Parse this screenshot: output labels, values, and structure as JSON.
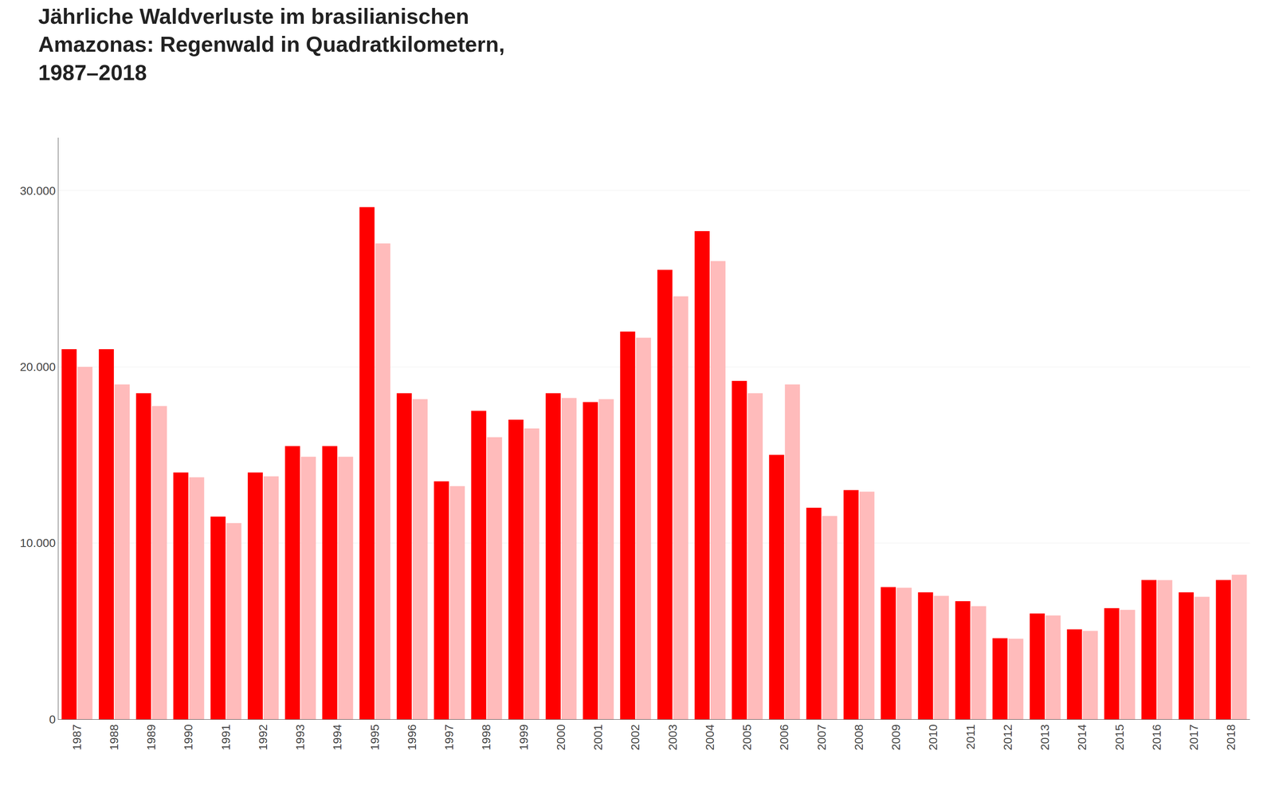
{
  "chart_data": {
    "type": "bar",
    "title": "Jährliche Waldverluste im brasilianischen\nAmazonas: Regenwald in Quadratkilometern,\n1987–2018",
    "categories": [
      "1987",
      "1988",
      "1989",
      "1990",
      "1991",
      "1992",
      "1993",
      "1994",
      "1995",
      "1996",
      "1997",
      "1998",
      "1999",
      "2000",
      "2001",
      "2002",
      "2003",
      "2004",
      "2005",
      "2006",
      "2007",
      "2008",
      "2009",
      "2010",
      "2011",
      "2012",
      "2013",
      "2014",
      "2015",
      "2016",
      "2017",
      "2018"
    ],
    "series": [
      {
        "color": "#ff0000",
        "values": [
          21000,
          21000,
          18500,
          14000,
          11500,
          14000,
          15500,
          15500,
          29059,
          18500,
          13500,
          17500,
          17000,
          18500,
          18000,
          22000,
          25500,
          27700,
          19200,
          15000,
          12000,
          13000,
          7500,
          7200,
          6700,
          4600,
          6000,
          5100,
          6300,
          7900,
          7200,
          7900
        ]
      },
      {
        "color": "#ffbbbb",
        "values": [
          20000,
          19000,
          17770,
          13730,
          11130,
          13786,
          14896,
          14896,
          27000,
          18161,
          13227,
          16000,
          16500,
          18226,
          18165,
          21651,
          24000,
          26000,
          18500,
          19000,
          11532,
          12911,
          7464,
          7000,
          6418,
          4571,
          5891,
          5012,
          6207,
          7893,
          6947,
          8200
        ]
      }
    ],
    "ylim": [
      0,
      33000
    ],
    "yticks": [
      0,
      {
        "value": 10000,
        "label": "10.000"
      },
      {
        "value": 20000,
        "label": "20.000"
      },
      {
        "value": 30000,
        "label": "30.000"
      }
    ],
    "grid": true
  }
}
